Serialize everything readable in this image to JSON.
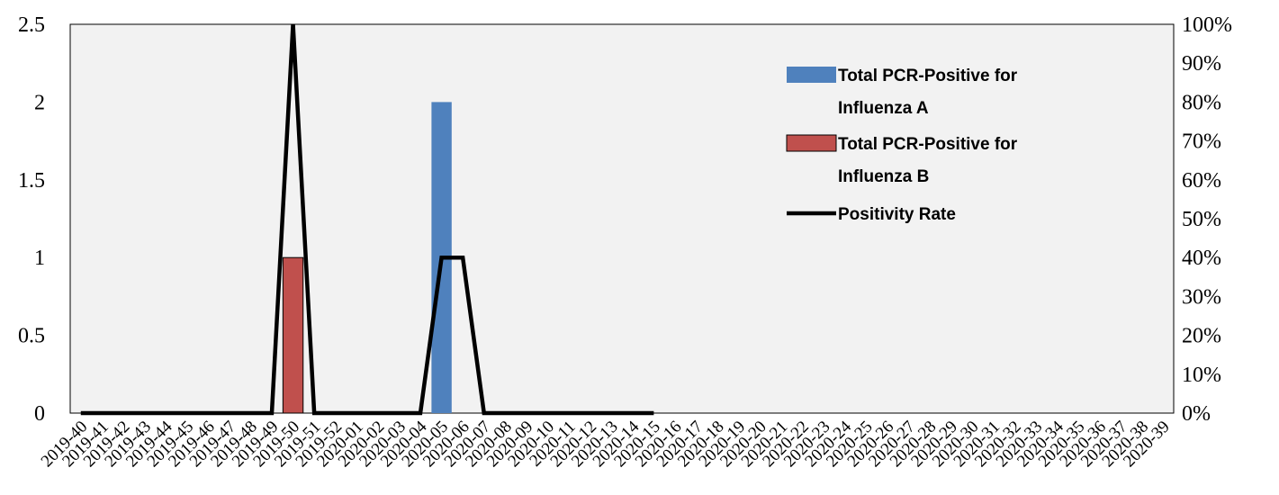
{
  "chart_data": {
    "type": "bar",
    "categories": [
      "2019-40",
      "2019-41",
      "2019-42",
      "2019-43",
      "2019-44",
      "2019-45",
      "2019-46",
      "2019-47",
      "2019-48",
      "2019-49",
      "2019-50",
      "2019-51",
      "2019-52",
      "2020-01",
      "2020-02",
      "2020-03",
      "2020-04",
      "2020-05",
      "2020-06",
      "2020-07",
      "2020-08",
      "2020-09",
      "2020-10",
      "2020-11",
      "2020-12",
      "2020-13",
      "2020-14",
      "2020-15",
      "2020-16",
      "2020-17",
      "2020-18",
      "2020-19",
      "2020-20",
      "2020-21",
      "2020-22",
      "2020-23",
      "2020-24",
      "2020-25",
      "2020-26",
      "2020-27",
      "2020-28",
      "2020-29",
      "2020-30",
      "2020-31",
      "2020-32",
      "2020-33",
      "2020-34",
      "2020-35",
      "2020-36",
      "2020-37",
      "2020-38",
      "2020-39"
    ],
    "series": [
      {
        "name": "Total PCR-Positive for Influenza A",
        "type": "bar",
        "axis": "left",
        "color": "#4F81BD",
        "values": [
          0,
          0,
          0,
          0,
          0,
          0,
          0,
          0,
          0,
          0,
          0,
          0,
          0,
          0,
          0,
          0,
          0,
          2,
          0,
          0,
          0,
          0,
          0,
          0,
          0,
          0,
          0,
          0,
          null,
          null,
          null,
          null,
          null,
          null,
          null,
          null,
          null,
          null,
          null,
          null,
          null,
          null,
          null,
          null,
          null,
          null,
          null,
          null,
          null,
          null,
          null,
          null
        ]
      },
      {
        "name": "Total PCR-Positive for Influenza B",
        "type": "bar",
        "axis": "left",
        "color": "#C0504D",
        "values": [
          0,
          0,
          0,
          0,
          0,
          0,
          0,
          0,
          0,
          0,
          1,
          0,
          0,
          0,
          0,
          0,
          0,
          0,
          0,
          0,
          0,
          0,
          0,
          0,
          0,
          0,
          0,
          0,
          null,
          null,
          null,
          null,
          null,
          null,
          null,
          null,
          null,
          null,
          null,
          null,
          null,
          null,
          null,
          null,
          null,
          null,
          null,
          null,
          null,
          null,
          null,
          null
        ]
      },
      {
        "name": "Positivity Rate",
        "type": "line",
        "axis": "right",
        "color": "#000000",
        "values": [
          0,
          0,
          0,
          0,
          0,
          0,
          0,
          0,
          0,
          0,
          100,
          0,
          0,
          0,
          0,
          0,
          0,
          40,
          40,
          0,
          0,
          0,
          0,
          0,
          0,
          0,
          0,
          0,
          null,
          null,
          null,
          null,
          null,
          null,
          null,
          null,
          null,
          null,
          null,
          null,
          null,
          null,
          null,
          null,
          null,
          null,
          null,
          null,
          null,
          null,
          null,
          null
        ]
      }
    ],
    "y_left": {
      "ylim": [
        0,
        2.5
      ],
      "ticks": [
        "0",
        "0.5",
        "1",
        "1.5",
        "2",
        "2.5"
      ]
    },
    "y_right": {
      "ylim": [
        0,
        100
      ],
      "ticks": [
        "0%",
        "10%",
        "20%",
        "30%",
        "40%",
        "50%",
        "60%",
        "70%",
        "80%",
        "90%",
        "100%"
      ]
    },
    "plot_background": "#F2F2F2",
    "grid": false,
    "legend_position": "top-right-inside"
  }
}
